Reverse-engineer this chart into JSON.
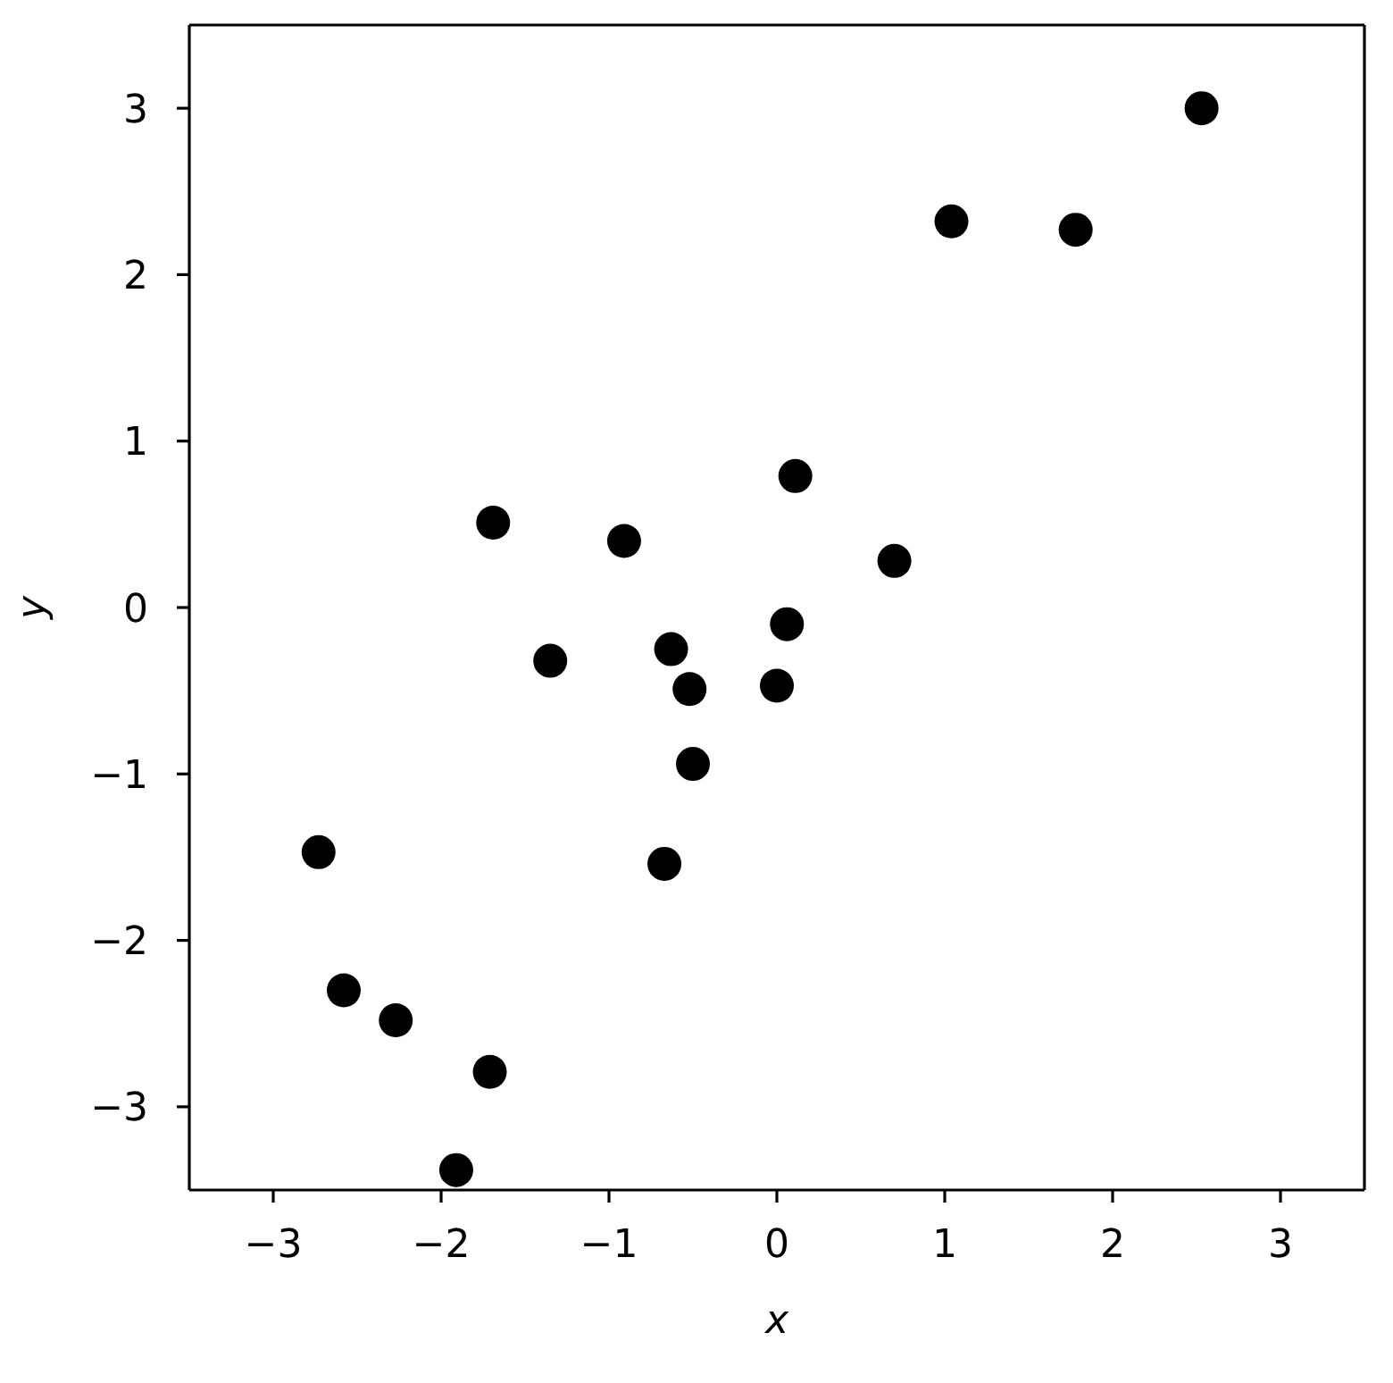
{
  "chart_data": {
    "type": "scatter",
    "xlabel": "x",
    "ylabel": "y",
    "x": [
      2.53,
      1.04,
      1.78,
      0.11,
      0.7,
      -1.69,
      -0.91,
      -1.35,
      -0.63,
      -0.52,
      0.06,
      0.0,
      -0.5,
      -0.67,
      -2.73,
      -2.58,
      -2.27,
      -1.71,
      -1.91
    ],
    "values": [
      3.0,
      2.32,
      2.27,
      0.79,
      0.28,
      0.51,
      0.4,
      -0.32,
      -0.25,
      -0.49,
      -0.1,
      -0.47,
      -0.94,
      -1.54,
      -1.47,
      -2.3,
      -2.48,
      -2.79,
      -3.38
    ],
    "color": "#000000",
    "marker": "circle",
    "xlim": [
      -3.5,
      3.5
    ],
    "xticks": [
      -3,
      -2,
      -1,
      0,
      1,
      2,
      3
    ],
    "ylim": [
      -3.5,
      3.5
    ],
    "yticks": [
      -3,
      -2,
      -1,
      0,
      1,
      2,
      3
    ]
  }
}
